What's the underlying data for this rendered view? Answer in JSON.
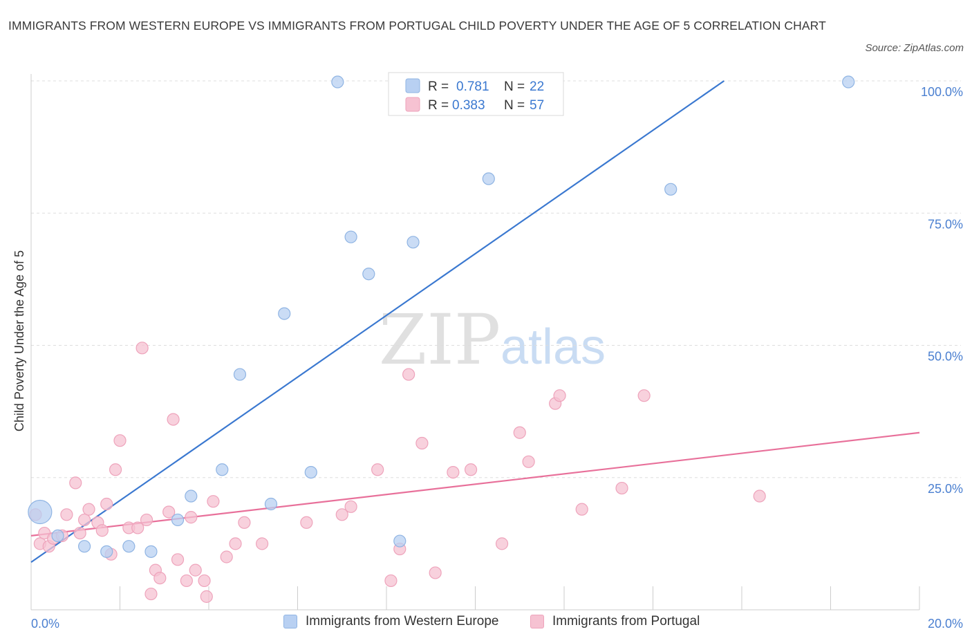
{
  "title": "IMMIGRANTS FROM WESTERN EUROPE VS IMMIGRANTS FROM PORTUGAL CHILD POVERTY UNDER THE AGE OF 5 CORRELATION CHART",
  "source": "Source: ZipAtlas.com",
  "watermark": {
    "zip": "ZIP",
    "atlas": "atlas"
  },
  "colors": {
    "blue_fill": "#b8d0f2",
    "blue_stroke": "#8fb4e3",
    "blue_line": "#3a78d0",
    "pink_fill": "#f6c2d2",
    "pink_stroke": "#eea3bb",
    "pink_line": "#e8709a",
    "axis_label": "#4a7fd0",
    "grid": "#dddddd"
  },
  "legend_top": [
    {
      "r_label": "R =",
      "r_value": "0.781",
      "n_label": "N =",
      "n_value": "22"
    },
    {
      "r_label": "R =",
      "r_value": "0.383",
      "n_label": "N =",
      "n_value": "57"
    }
  ],
  "chart_data": {
    "type": "scatter",
    "xlabel": "",
    "ylabel": "Child Poverty Under the Age of 5",
    "xlim": [
      0,
      20
    ],
    "ylim": [
      0,
      100
    ],
    "x_tick_labels": [
      "0.0%",
      "20.0%"
    ],
    "y_tick_labels": [
      "25.0%",
      "50.0%",
      "75.0%",
      "100.0%"
    ],
    "y_gridlines": [
      25,
      50,
      75,
      100
    ],
    "grid": true,
    "legend_position": "bottom-center",
    "series": [
      {
        "name": "Immigrants from Western Europe",
        "color": "#b8d0f2",
        "trend": {
          "x0": 0,
          "y0": 9,
          "x1": 15.6,
          "y1": 100
        },
        "points": [
          [
            0.2,
            18.5,
            "large"
          ],
          [
            0.6,
            14
          ],
          [
            1.2,
            12
          ],
          [
            1.7,
            11
          ],
          [
            2.2,
            12
          ],
          [
            2.7,
            11
          ],
          [
            3.3,
            17
          ],
          [
            3.6,
            21.5
          ],
          [
            4.3,
            26.5
          ],
          [
            4.7,
            44.5
          ],
          [
            5.4,
            20
          ],
          [
            5.7,
            56
          ],
          [
            6.3,
            26
          ],
          [
            6.9,
            99.8
          ],
          [
            7.2,
            70.5
          ],
          [
            7.6,
            63.5
          ],
          [
            8.3,
            13
          ],
          [
            8.6,
            69.5
          ],
          [
            9.0,
            99.8
          ],
          [
            10.3,
            81.5
          ],
          [
            14.4,
            79.5
          ],
          [
            18.4,
            99.8
          ]
        ]
      },
      {
        "name": "Immigrants from Portugal",
        "color": "#f6c2d2",
        "trend": {
          "x0": 0,
          "y0": 14,
          "x1": 20,
          "y1": 33.5
        },
        "points": [
          [
            0.1,
            18
          ],
          [
            0.2,
            12.5
          ],
          [
            0.3,
            14.5
          ],
          [
            0.4,
            12
          ],
          [
            0.5,
            13.5
          ],
          [
            0.7,
            14
          ],
          [
            0.8,
            18
          ],
          [
            1.0,
            24
          ],
          [
            1.1,
            14.5
          ],
          [
            1.2,
            17
          ],
          [
            1.3,
            19
          ],
          [
            1.5,
            16.5
          ],
          [
            1.6,
            15
          ],
          [
            1.7,
            20
          ],
          [
            1.8,
            10.5
          ],
          [
            1.9,
            26.5
          ],
          [
            2.0,
            32
          ],
          [
            2.2,
            15.5
          ],
          [
            2.4,
            15.5
          ],
          [
            2.5,
            49.5
          ],
          [
            2.6,
            17
          ],
          [
            2.7,
            3
          ],
          [
            2.8,
            7.5
          ],
          [
            2.9,
            6
          ],
          [
            3.1,
            18.5
          ],
          [
            3.2,
            36
          ],
          [
            3.3,
            9.5
          ],
          [
            3.5,
            5.5
          ],
          [
            3.6,
            17.5
          ],
          [
            3.7,
            7.5
          ],
          [
            3.9,
            5.5
          ],
          [
            3.95,
            2.5
          ],
          [
            4.1,
            20.5
          ],
          [
            4.4,
            10
          ],
          [
            4.6,
            12.5
          ],
          [
            4.8,
            16.5
          ],
          [
            5.2,
            12.5
          ],
          [
            6.2,
            16.5
          ],
          [
            7.0,
            18
          ],
          [
            7.2,
            19.5
          ],
          [
            7.8,
            26.5
          ],
          [
            8.1,
            5.5
          ],
          [
            8.3,
            11.5
          ],
          [
            8.5,
            44.5
          ],
          [
            8.8,
            31.5
          ],
          [
            9.1,
            7
          ],
          [
            9.5,
            26
          ],
          [
            9.9,
            26.5
          ],
          [
            10.6,
            12.5
          ],
          [
            11.0,
            33.5
          ],
          [
            11.2,
            28
          ],
          [
            11.8,
            39
          ],
          [
            11.9,
            40.5
          ],
          [
            12.4,
            19
          ],
          [
            13.3,
            23
          ],
          [
            13.8,
            40.5
          ],
          [
            16.4,
            21.5
          ]
        ]
      }
    ]
  }
}
